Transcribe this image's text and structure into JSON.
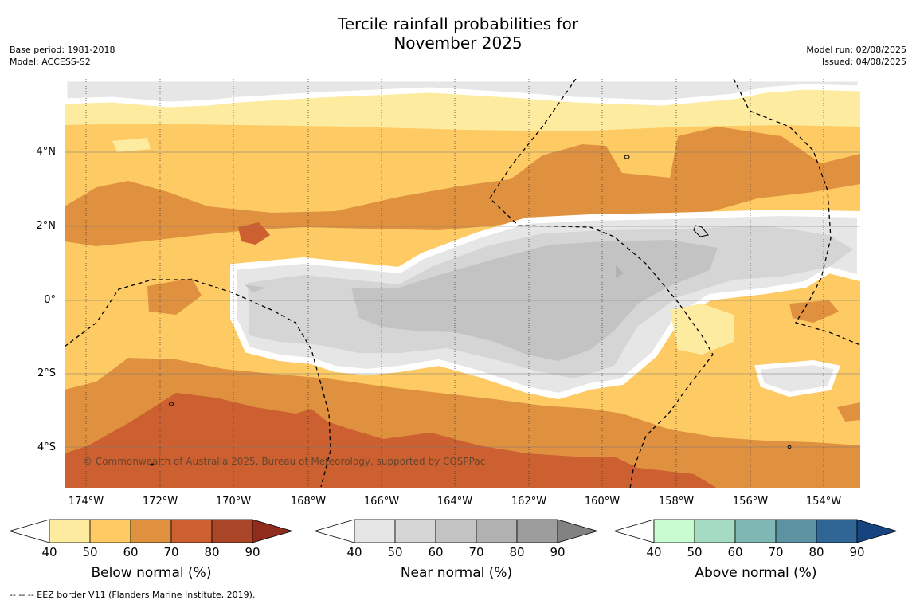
{
  "title_line1": "Tercile rainfall probabilities for",
  "title_line2": "November 2025",
  "base_period": "Base period: 1981-2018",
  "model": "Model: ACCESS-S2",
  "model_run": "Model run: 02/08/2025",
  "issued": "Issued: 04/08/2025",
  "copyright": "© Commonwealth of Australia 2025, Bureau of Meteorology, supported by COSPPac",
  "footnote": "--  --  -- EEZ border V11 (Flanders Marine Institute, 2019).",
  "latitude_labels": [
    "4°N",
    "2°N",
    "0°",
    "2°S",
    "4°S"
  ],
  "longitude_labels": [
    "174°W",
    "172°W",
    "170°W",
    "168°W",
    "166°W",
    "164°W",
    "162°W",
    "160°W",
    "158°W",
    "156°W",
    "154°W"
  ],
  "colorbars": [
    {
      "title": "Below normal (%)",
      "ticks": [
        "40",
        "50",
        "60",
        "70",
        "80",
        "90"
      ],
      "colors": [
        "#fdeba0",
        "#fdca63",
        "#e09140",
        "#cc6030",
        "#aa4527",
        "#8f2c1c"
      ]
    },
    {
      "title": "Near normal (%)",
      "ticks": [
        "40",
        "50",
        "60",
        "70",
        "80",
        "90"
      ],
      "colors": [
        "#e6e6e6",
        "#d5d5d5",
        "#c3c3c3",
        "#b1b1b1",
        "#9d9d9d",
        "#828282"
      ]
    },
    {
      "title": "Above normal (%)",
      "ticks": [
        "40",
        "50",
        "60",
        "70",
        "80",
        "90"
      ],
      "colors": [
        "#c9fbd0",
        "#a4dcc3",
        "#7fb7b4",
        "#5d92a3",
        "#306695",
        "#17447e"
      ]
    }
  ]
}
